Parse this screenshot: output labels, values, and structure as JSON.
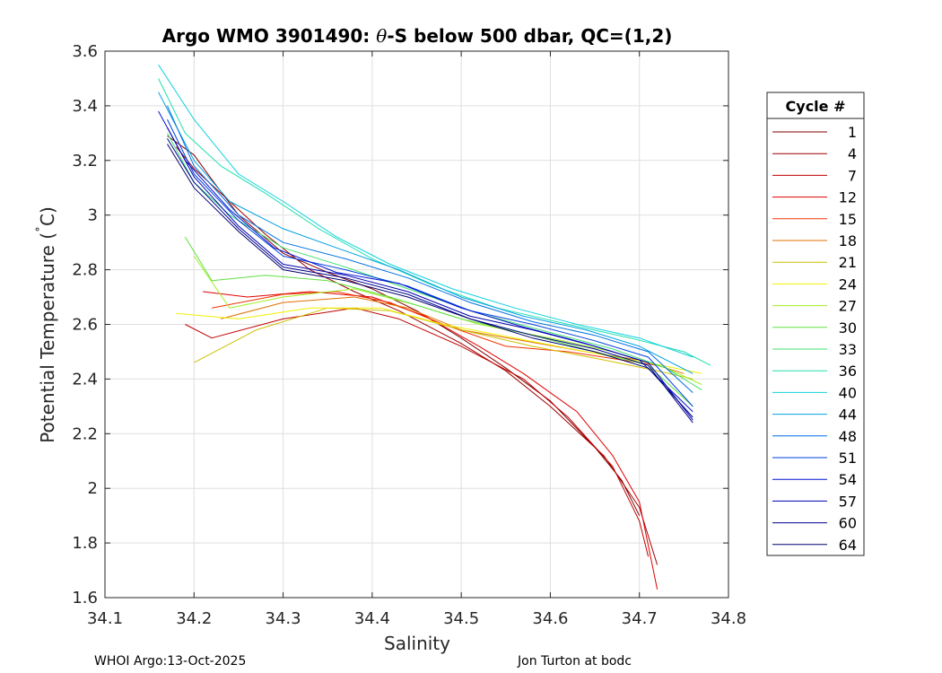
{
  "chart_data": {
    "type": "line",
    "title": "Argo WMO 3901490: θ-S below 500 dbar,  QC=(1,2)",
    "title_prefix": "Argo WMO 3901490: ",
    "title_theta": "θ",
    "title_suffix": "-S below 500 dbar,  QC=(1,2)",
    "xlabel": "Salinity",
    "ylabel": "Potential Temperature (˚C)",
    "ylabel_main": "Potential Temperature (",
    "ylabel_deg": "˚",
    "ylabel_end": "C)",
    "xlim": [
      34.1,
      34.8
    ],
    "ylim": [
      1.6,
      3.6
    ],
    "xticks": [
      "34.1",
      "34.2",
      "34.3",
      "34.4",
      "34.5",
      "34.6",
      "34.7",
      "34.8"
    ],
    "yticks": [
      "1.6",
      "1.8",
      "2",
      "2.2",
      "2.4",
      "2.6",
      "2.8",
      "3",
      "3.2",
      "3.4",
      "3.6"
    ],
    "grid": true,
    "legend_title": "Cycle #",
    "legend_position": "right",
    "series": [
      {
        "name": "1",
        "color": "#800000",
        "values": [
          [
            34.17,
            3.29
          ],
          [
            34.2,
            3.22
          ],
          [
            34.22,
            3.13
          ],
          [
            34.25,
            3.0
          ],
          [
            34.3,
            2.86
          ],
          [
            34.35,
            2.79
          ],
          [
            34.4,
            2.73
          ],
          [
            34.45,
            2.65
          ],
          [
            34.5,
            2.55
          ],
          [
            34.55,
            2.44
          ],
          [
            34.6,
            2.32
          ],
          [
            34.65,
            2.15
          ],
          [
            34.68,
            2.03
          ],
          [
            34.7,
            1.9
          ]
        ]
      },
      {
        "name": "4",
        "color": "#a00000",
        "values": [
          [
            34.18,
            3.25
          ],
          [
            34.2,
            3.17
          ],
          [
            34.23,
            3.08
          ],
          [
            34.28,
            2.93
          ],
          [
            34.33,
            2.8
          ],
          [
            34.38,
            2.72
          ],
          [
            34.43,
            2.65
          ],
          [
            34.5,
            2.53
          ],
          [
            34.55,
            2.43
          ],
          [
            34.6,
            2.3
          ],
          [
            34.66,
            2.12
          ],
          [
            34.7,
            1.93
          ],
          [
            34.72,
            1.72
          ]
        ]
      },
      {
        "name": "7",
        "color": "#c00000",
        "values": [
          [
            34.19,
            2.6
          ],
          [
            34.22,
            2.55
          ],
          [
            34.3,
            2.62
          ],
          [
            34.38,
            2.66
          ],
          [
            34.43,
            2.62
          ],
          [
            34.5,
            2.52
          ],
          [
            34.57,
            2.4
          ],
          [
            34.62,
            2.26
          ],
          [
            34.67,
            2.08
          ],
          [
            34.7,
            1.88
          ],
          [
            34.71,
            1.75
          ]
        ]
      },
      {
        "name": "12",
        "color": "#e00000",
        "values": [
          [
            34.21,
            2.72
          ],
          [
            34.26,
            2.7
          ],
          [
            34.33,
            2.72
          ],
          [
            34.4,
            2.7
          ],
          [
            34.46,
            2.63
          ],
          [
            34.52,
            2.52
          ],
          [
            34.57,
            2.42
          ],
          [
            34.63,
            2.28
          ],
          [
            34.67,
            2.12
          ],
          [
            34.7,
            1.95
          ],
          [
            34.72,
            1.63
          ]
        ]
      },
      {
        "name": "15",
        "color": "#f03000",
        "values": [
          [
            34.22,
            2.66
          ],
          [
            34.3,
            2.71
          ],
          [
            34.36,
            2.72
          ],
          [
            34.42,
            2.68
          ],
          [
            34.48,
            2.6
          ],
          [
            34.55,
            2.52
          ],
          [
            34.62,
            2.5
          ],
          [
            34.68,
            2.47
          ],
          [
            34.72,
            2.45
          ]
        ]
      },
      {
        "name": "18",
        "color": "#e07000",
        "values": [
          [
            34.23,
            2.62
          ],
          [
            34.3,
            2.68
          ],
          [
            34.38,
            2.7
          ],
          [
            34.44,
            2.66
          ],
          [
            34.5,
            2.58
          ],
          [
            34.57,
            2.54
          ],
          [
            34.64,
            2.5
          ],
          [
            34.7,
            2.47
          ],
          [
            34.75,
            2.42
          ]
        ]
      },
      {
        "name": "21",
        "color": "#d0c000",
        "values": [
          [
            34.2,
            2.46
          ],
          [
            34.27,
            2.58
          ],
          [
            34.35,
            2.66
          ],
          [
            34.42,
            2.65
          ],
          [
            34.5,
            2.58
          ],
          [
            34.58,
            2.52
          ],
          [
            34.66,
            2.47
          ],
          [
            34.72,
            2.43
          ],
          [
            34.76,
            2.4
          ]
        ]
      },
      {
        "name": "24",
        "color": "#f0f000",
        "values": [
          [
            34.18,
            2.64
          ],
          [
            34.25,
            2.62
          ],
          [
            34.33,
            2.66
          ],
          [
            34.41,
            2.66
          ],
          [
            34.48,
            2.6
          ],
          [
            34.56,
            2.55
          ],
          [
            34.64,
            2.5
          ],
          [
            34.71,
            2.46
          ],
          [
            34.77,
            2.42
          ]
        ]
      },
      {
        "name": "27",
        "color": "#a0f020",
        "values": [
          [
            34.2,
            2.85
          ],
          [
            34.24,
            2.66
          ],
          [
            34.3,
            2.7
          ],
          [
            34.38,
            2.73
          ],
          [
            34.45,
            2.67
          ],
          [
            34.52,
            2.6
          ],
          [
            34.6,
            2.55
          ],
          [
            34.67,
            2.5
          ],
          [
            34.73,
            2.44
          ],
          [
            34.77,
            2.38
          ]
        ]
      },
      {
        "name": "30",
        "color": "#60e040",
        "values": [
          [
            34.19,
            2.92
          ],
          [
            34.22,
            2.76
          ],
          [
            34.28,
            2.78
          ],
          [
            34.35,
            2.76
          ],
          [
            34.42,
            2.7
          ],
          [
            34.5,
            2.62
          ],
          [
            34.58,
            2.56
          ],
          [
            34.65,
            2.5
          ],
          [
            34.71,
            2.45
          ],
          [
            34.76,
            2.3
          ]
        ]
      },
      {
        "name": "33",
        "color": "#40e070",
        "values": [
          [
            34.17,
            3.3
          ],
          [
            34.2,
            3.12
          ],
          [
            34.24,
            3.0
          ],
          [
            34.3,
            2.88
          ],
          [
            34.37,
            2.81
          ],
          [
            34.44,
            2.73
          ],
          [
            34.52,
            2.64
          ],
          [
            34.6,
            2.57
          ],
          [
            34.67,
            2.51
          ],
          [
            34.73,
            2.44
          ],
          [
            34.77,
            2.36
          ]
        ]
      },
      {
        "name": "36",
        "color": "#20e0b0",
        "values": [
          [
            34.16,
            3.5
          ],
          [
            34.19,
            3.3
          ],
          [
            34.23,
            3.18
          ],
          [
            34.28,
            3.08
          ],
          [
            34.34,
            2.95
          ],
          [
            34.4,
            2.84
          ],
          [
            34.47,
            2.74
          ],
          [
            34.54,
            2.66
          ],
          [
            34.62,
            2.6
          ],
          [
            34.69,
            2.55
          ],
          [
            34.75,
            2.5
          ],
          [
            34.78,
            2.45
          ]
        ]
      },
      {
        "name": "40",
        "color": "#10d0e0",
        "values": [
          [
            34.16,
            3.55
          ],
          [
            34.2,
            3.35
          ],
          [
            34.25,
            3.15
          ],
          [
            34.3,
            3.05
          ],
          [
            34.36,
            2.92
          ],
          [
            34.42,
            2.82
          ],
          [
            34.49,
            2.73
          ],
          [
            34.56,
            2.66
          ],
          [
            34.63,
            2.6
          ],
          [
            34.7,
            2.55
          ],
          [
            34.76,
            2.48
          ]
        ]
      },
      {
        "name": "44",
        "color": "#00a0e0",
        "values": [
          [
            34.16,
            3.45
          ],
          [
            34.2,
            3.2
          ],
          [
            34.24,
            3.05
          ],
          [
            34.3,
            2.95
          ],
          [
            34.36,
            2.88
          ],
          [
            34.43,
            2.8
          ],
          [
            34.5,
            2.7
          ],
          [
            34.57,
            2.63
          ],
          [
            34.64,
            2.58
          ],
          [
            34.7,
            2.52
          ],
          [
            34.76,
            2.42
          ]
        ]
      },
      {
        "name": "48",
        "color": "#0070e0",
        "values": [
          [
            34.17,
            3.4
          ],
          [
            34.2,
            3.18
          ],
          [
            34.25,
            3.0
          ],
          [
            34.3,
            2.9
          ],
          [
            34.37,
            2.84
          ],
          [
            34.44,
            2.77
          ],
          [
            34.51,
            2.68
          ],
          [
            34.58,
            2.61
          ],
          [
            34.65,
            2.56
          ],
          [
            34.71,
            2.5
          ],
          [
            34.76,
            2.35
          ]
        ]
      },
      {
        "name": "51",
        "color": "#0040e0",
        "values": [
          [
            34.17,
            3.35
          ],
          [
            34.2,
            3.15
          ],
          [
            34.25,
            2.98
          ],
          [
            34.3,
            2.85
          ],
          [
            34.37,
            2.8
          ],
          [
            34.44,
            2.74
          ],
          [
            34.51,
            2.65
          ],
          [
            34.58,
            2.6
          ],
          [
            34.65,
            2.54
          ],
          [
            34.71,
            2.48
          ],
          [
            34.76,
            2.3
          ]
        ]
      },
      {
        "name": "54",
        "color": "#0010d0",
        "values": [
          [
            34.16,
            3.38
          ],
          [
            34.19,
            3.2
          ],
          [
            34.24,
            3.02
          ],
          [
            34.29,
            2.88
          ],
          [
            34.36,
            2.79
          ],
          [
            34.43,
            2.75
          ],
          [
            34.5,
            2.66
          ],
          [
            34.57,
            2.59
          ],
          [
            34.64,
            2.53
          ],
          [
            34.7,
            2.47
          ],
          [
            34.76,
            2.28
          ]
        ]
      },
      {
        "name": "57",
        "color": "#0000b0",
        "values": [
          [
            34.17,
            3.32
          ],
          [
            34.2,
            3.14
          ],
          [
            34.25,
            2.96
          ],
          [
            34.3,
            2.82
          ],
          [
            34.37,
            2.78
          ],
          [
            34.44,
            2.72
          ],
          [
            34.51,
            2.63
          ],
          [
            34.58,
            2.58
          ],
          [
            34.65,
            2.52
          ],
          [
            34.71,
            2.46
          ],
          [
            34.76,
            2.25
          ]
        ]
      },
      {
        "name": "60",
        "color": "#000090",
        "values": [
          [
            34.17,
            3.28
          ],
          [
            34.2,
            3.12
          ],
          [
            34.25,
            2.95
          ],
          [
            34.3,
            2.81
          ],
          [
            34.37,
            2.77
          ],
          [
            34.44,
            2.71
          ],
          [
            34.51,
            2.62
          ],
          [
            34.58,
            2.56
          ],
          [
            34.65,
            2.51
          ],
          [
            34.71,
            2.45
          ],
          [
            34.76,
            2.24
          ]
        ]
      },
      {
        "name": "64",
        "color": "#000070",
        "values": [
          [
            34.17,
            3.26
          ],
          [
            34.2,
            3.1
          ],
          [
            34.25,
            2.94
          ],
          [
            34.3,
            2.8
          ],
          [
            34.37,
            2.76
          ],
          [
            34.44,
            2.7
          ],
          [
            34.51,
            2.62
          ],
          [
            34.58,
            2.55
          ],
          [
            34.65,
            2.5
          ],
          [
            34.71,
            2.44
          ],
          [
            34.76,
            2.26
          ]
        ]
      }
    ]
  },
  "footer": {
    "left": "WHOI Argo:13-Oct-2025",
    "right": "Jon Turton at bodc"
  }
}
